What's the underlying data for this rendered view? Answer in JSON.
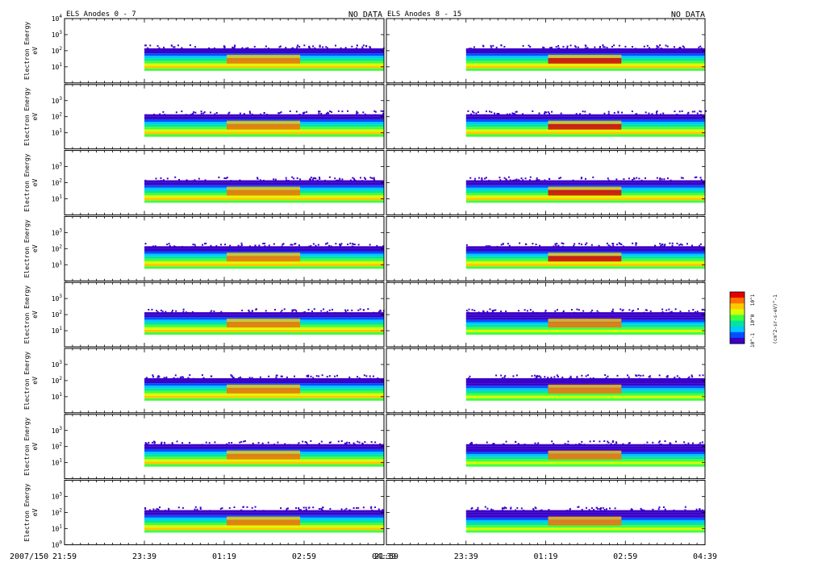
{
  "figure": {
    "left_title": "ELS Anodes 0 - 7",
    "right_title": "ELS Anodes 8 - 15",
    "left_status": "NO DATA",
    "right_status": "NO DATA",
    "date_label": "2007/150"
  },
  "chart_data": {
    "type": "heatmap",
    "panels_left": 8,
    "panels_right": 8,
    "ylabel": "Electron Energy",
    "yunit": "eV",
    "y_scale": "log",
    "ylim_exp": [
      0,
      4
    ],
    "y_tick_exps": [
      1,
      2,
      3
    ],
    "first_panel_y_tick_exps": [
      1,
      2,
      3,
      4
    ],
    "last_panel_y_tick_exps": [
      0,
      1,
      2,
      3
    ],
    "x_ticks": [
      "21:59",
      "23:39",
      "01:19",
      "02:59",
      "04:39"
    ],
    "x_tick_hours": [
      21.983,
      23.65,
      25.317,
      26.983,
      28.65
    ],
    "x_range_hours": [
      21.983,
      28.65
    ],
    "data_start_hour": 23.65,
    "data_end_hour": 28.65,
    "energy_band_exp": [
      0.75,
      2.15
    ],
    "colorbar": {
      "label": "(cm^2-sr-s-eV)^-1",
      "tick_labels": [
        "10^1",
        "10^0",
        "10^-1"
      ],
      "colors": [
        "#3a00c8",
        "#0050ff",
        "#00c8ff",
        "#00e6a0",
        "#40ff40",
        "#d8ff00",
        "#ffc800",
        "#ff7000",
        "#e80000"
      ]
    }
  }
}
